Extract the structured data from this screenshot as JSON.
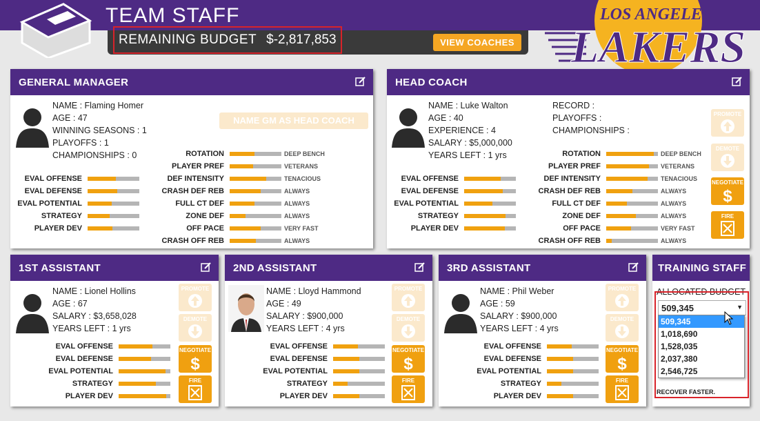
{
  "header": {
    "title": "TEAM STAFF",
    "budget_label": "REMAINING BUDGET",
    "budget_value": "$-2,817,853",
    "view_coaches_label": "VIEW COACHES"
  },
  "logo": {
    "text_top": "LOS ANGELES",
    "text_main": "LAKERS"
  },
  "colors": {
    "purple": "#4e2a84",
    "gold": "#f0a10f",
    "red": "#d8232a"
  },
  "gm": {
    "title": "GENERAL MANAGER",
    "name_label": "NAME :",
    "name": "Flaming Homer",
    "age_label": "AGE :",
    "age": "47",
    "ws_label": "WINNING SEASONS :",
    "ws": "1",
    "po_label": "PLAYOFFS :",
    "po": "1",
    "ch_label": "CHAMPIONSHIPS :",
    "ch": "0",
    "name_gm_button": "NAME GM AS HEAD COACH",
    "evals": [
      {
        "label": "EVAL OFFENSE",
        "value": 0.55
      },
      {
        "label": "EVAL DEFENSE",
        "value": 0.57
      },
      {
        "label": "EVAL POTENTIAL",
        "value": 0.47
      },
      {
        "label": "STRATEGY",
        "value": 0.42
      },
      {
        "label": "PLAYER DEV",
        "value": 0.48
      }
    ],
    "tactics": [
      {
        "label": "ROTATION",
        "value": 0.48,
        "text": "DEEP BENCH"
      },
      {
        "label": "PLAYER PREF",
        "value": 0.45,
        "text": "VETERANS"
      },
      {
        "label": "DEF INTENSITY",
        "value": 0.7,
        "text": "TENACIOUS"
      },
      {
        "label": "CRASH DEF REB",
        "value": 0.6,
        "text": "ALWAYS"
      },
      {
        "label": "FULL CT DEF",
        "value": 0.48,
        "text": "ALWAYS"
      },
      {
        "label": "ZONE DEF",
        "value": 0.3,
        "text": "ALWAYS"
      },
      {
        "label": "OFF PACE",
        "value": 0.6,
        "text": "VERY FAST"
      },
      {
        "label": "CRASH OFF REB",
        "value": 0.5,
        "text": "ALWAYS"
      }
    ]
  },
  "hc": {
    "title": "HEAD COACH",
    "name_label": "NAME :",
    "name": "Luke Walton",
    "age_label": "AGE :",
    "age": "40",
    "exp_label": "EXPERIENCE :",
    "exp": "4",
    "sal_label": "SALARY :",
    "sal": "$5,000,000",
    "yl_label": "YEARS LEFT :",
    "yl": "1 yrs",
    "rec_label": "RECORD :",
    "po_label": "PLAYOFFS :",
    "ch_label": "CHAMPIONSHIPS :",
    "evals": [
      {
        "label": "EVAL OFFENSE",
        "value": 0.7
      },
      {
        "label": "EVAL DEFENSE",
        "value": 0.75
      },
      {
        "label": "EVAL POTENTIAL",
        "value": 0.55
      },
      {
        "label": "STRATEGY",
        "value": 0.8
      },
      {
        "label": "PLAYER DEV",
        "value": 0.78
      }
    ],
    "tactics": [
      {
        "label": "ROTATION",
        "value": 0.92,
        "text": "DEEP BENCH"
      },
      {
        "label": "PLAYER PREF",
        "value": 0.82,
        "text": "VETERANS"
      },
      {
        "label": "DEF INTENSITY",
        "value": 0.8,
        "text": "TENACIOUS"
      },
      {
        "label": "CRASH DEF REB",
        "value": 0.5,
        "text": "ALWAYS"
      },
      {
        "label": "FULL CT DEF",
        "value": 0.4,
        "text": "ALWAYS"
      },
      {
        "label": "ZONE DEF",
        "value": 0.57,
        "text": "ALWAYS"
      },
      {
        "label": "OFF PACE",
        "value": 0.48,
        "text": "VERY FAST"
      },
      {
        "label": "CRASH OFF REB",
        "value": 0.1,
        "text": "ALWAYS"
      }
    ]
  },
  "actions": {
    "promote": "PROMOTE",
    "demote": "DEMOTE",
    "negotiate": "NEGOTIATE",
    "fire": "FIRE"
  },
  "a1": {
    "title": "1ST ASSISTANT",
    "name_label": "NAME :",
    "name": "Lionel Hollins",
    "age_label": "AGE :",
    "age": "67",
    "sal_label": "SALARY :",
    "sal": "$3,658,028",
    "yl_label": "YEARS LEFT :",
    "yl": "1 yrs",
    "evals": [
      {
        "label": "EVAL OFFENSE",
        "value": 0.65
      },
      {
        "label": "EVAL DEFENSE",
        "value": 0.63
      },
      {
        "label": "EVAL POTENTIAL",
        "value": 0.9
      },
      {
        "label": "STRATEGY",
        "value": 0.72
      },
      {
        "label": "PLAYER DEV",
        "value": 0.92
      }
    ]
  },
  "a2": {
    "title": "2ND ASSISTANT",
    "name_label": "NAME :",
    "name": "Lloyd Hammond",
    "age_label": "AGE :",
    "age": "49",
    "sal_label": "SALARY :",
    "sal": "$900,000",
    "yl_label": "YEARS LEFT :",
    "yl": "4 yrs",
    "evals": [
      {
        "label": "EVAL OFFENSE",
        "value": 0.48
      },
      {
        "label": "EVAL DEFENSE",
        "value": 0.5
      },
      {
        "label": "EVAL POTENTIAL",
        "value": 0.5
      },
      {
        "label": "STRATEGY",
        "value": 0.28
      },
      {
        "label": "PLAYER DEV",
        "value": 0.5
      }
    ]
  },
  "a3": {
    "title": "3RD ASSISTANT",
    "name_label": "NAME :",
    "name": "Phil Weber",
    "age_label": "AGE :",
    "age": "59",
    "sal_label": "SALARY :",
    "sal": "$900,000",
    "yl_label": "YEARS LEFT :",
    "yl": "4 yrs",
    "evals": [
      {
        "label": "EVAL OFFENSE",
        "value": 0.48
      },
      {
        "label": "EVAL DEFENSE",
        "value": 0.5
      },
      {
        "label": "EVAL POTENTIAL",
        "value": 0.5
      },
      {
        "label": "STRATEGY",
        "value": 0.28
      },
      {
        "label": "PLAYER DEV",
        "value": 0.5
      }
    ]
  },
  "training": {
    "title": "TRAINING STAFF",
    "allocated_label": "ALLOCATED BUDGET",
    "selected": "509,345",
    "options": [
      "509,345",
      "1,018,690",
      "1,528,035",
      "2,037,380",
      "2,546,725"
    ],
    "footer_text": "RECOVER FASTER."
  }
}
